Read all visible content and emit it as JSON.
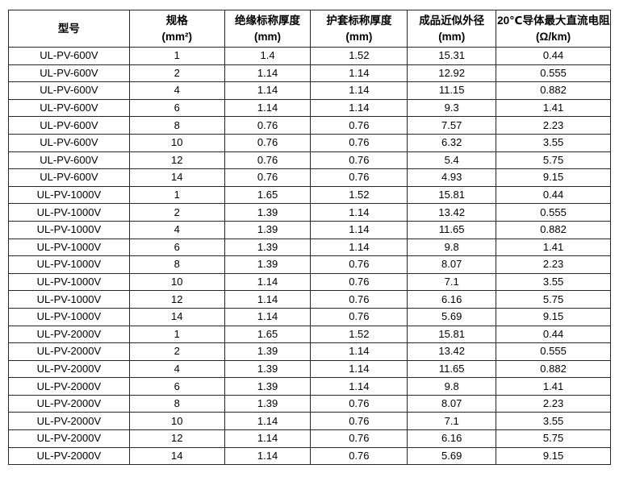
{
  "page": {
    "background_color": "#ffffff",
    "border_color": "#262626",
    "text_color": "#000000"
  },
  "table": {
    "columns": [
      {
        "title": "型号",
        "unit": ""
      },
      {
        "title": "规格",
        "unit": "(mm²)"
      },
      {
        "title": "绝缘标称厚度",
        "unit": "(mm)"
      },
      {
        "title": "护套标称厚度",
        "unit": "(mm)"
      },
      {
        "title": "成品近似外径",
        "unit": "(mm)"
      },
      {
        "title": "20℃导体最大直流电阻",
        "unit": "(Ω/km)"
      }
    ],
    "rows": [
      [
        "UL-PV-600V",
        "1",
        "1.4",
        "1.52",
        "15.31",
        "0.44"
      ],
      [
        "UL-PV-600V",
        "2",
        "1.14",
        "1.14",
        "12.92",
        "0.555"
      ],
      [
        "UL-PV-600V",
        "4",
        "1.14",
        "1.14",
        "11.15",
        "0.882"
      ],
      [
        "UL-PV-600V",
        "6",
        "1.14",
        "1.14",
        "9.3",
        "1.41"
      ],
      [
        "UL-PV-600V",
        "8",
        "0.76",
        "0.76",
        "7.57",
        "2.23"
      ],
      [
        "UL-PV-600V",
        "10",
        "0.76",
        "0.76",
        "6.32",
        "3.55"
      ],
      [
        "UL-PV-600V",
        "12",
        "0.76",
        "0.76",
        "5.4",
        "5.75"
      ],
      [
        "UL-PV-600V",
        "14",
        "0.76",
        "0.76",
        "4.93",
        "9.15"
      ],
      [
        "UL-PV-1000V",
        "1",
        "1.65",
        "1.52",
        "15.81",
        "0.44"
      ],
      [
        "UL-PV-1000V",
        "2",
        "1.39",
        "1.14",
        "13.42",
        "0.555"
      ],
      [
        "UL-PV-1000V",
        "4",
        "1.39",
        "1.14",
        "11.65",
        "0.882"
      ],
      [
        "UL-PV-1000V",
        "6",
        "1.39",
        "1.14",
        "9.8",
        "1.41"
      ],
      [
        "UL-PV-1000V",
        "8",
        "1.39",
        "0.76",
        "8.07",
        "2.23"
      ],
      [
        "UL-PV-1000V",
        "10",
        "1.14",
        "0.76",
        "7.1",
        "3.55"
      ],
      [
        "UL-PV-1000V",
        "12",
        "1.14",
        "0.76",
        "6.16",
        "5.75"
      ],
      [
        "UL-PV-1000V",
        "14",
        "1.14",
        "0.76",
        "5.69",
        "9.15"
      ],
      [
        "UL-PV-2000V",
        "1",
        "1.65",
        "1.52",
        "15.81",
        "0.44"
      ],
      [
        "UL-PV-2000V",
        "2",
        "1.39",
        "1.14",
        "13.42",
        "0.555"
      ],
      [
        "UL-PV-2000V",
        "4",
        "1.39",
        "1.14",
        "11.65",
        "0.882"
      ],
      [
        "UL-PV-2000V",
        "6",
        "1.39",
        "1.14",
        "9.8",
        "1.41"
      ],
      [
        "UL-PV-2000V",
        "8",
        "1.39",
        "0.76",
        "8.07",
        "2.23"
      ],
      [
        "UL-PV-2000V",
        "10",
        "1.14",
        "0.76",
        "7.1",
        "3.55"
      ],
      [
        "UL-PV-2000V",
        "12",
        "1.14",
        "0.76",
        "6.16",
        "5.75"
      ],
      [
        "UL-PV-2000V",
        "14",
        "1.14",
        "0.76",
        "5.69",
        "9.15"
      ]
    ]
  }
}
